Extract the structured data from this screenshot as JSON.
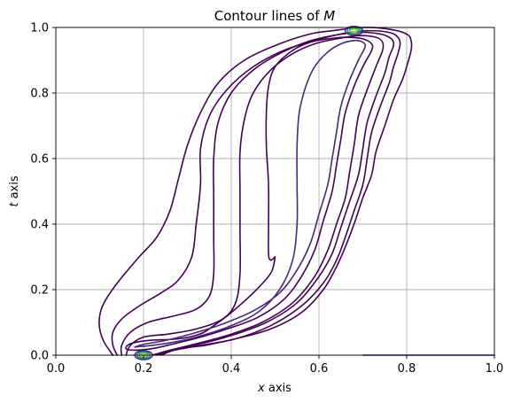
{
  "chart_data": {
    "type": "contour",
    "title": {
      "prefix": "Contour lines of ",
      "variable": "M"
    },
    "xlabel": {
      "variable": "x",
      "suffix": " axis"
    },
    "ylabel": {
      "variable": "t",
      "suffix": " axis"
    },
    "xlim": [
      0.0,
      1.0
    ],
    "ylim": [
      0.0,
      1.0
    ],
    "xticks": [
      0.0,
      0.2,
      0.4,
      0.6,
      0.8,
      1.0
    ],
    "yticks": [
      0.0,
      0.2,
      0.4,
      0.6,
      0.8,
      1.0
    ],
    "xtick_labels": [
      "0.0",
      "0.2",
      "0.4",
      "0.6",
      "0.8",
      "1.0"
    ],
    "ytick_labels": [
      "0.0",
      "0.2",
      "0.4",
      "0.6",
      "0.8",
      "1.0"
    ],
    "grid": true,
    "colors": {
      "contour_main": "#440154",
      "contour_inner": "#482878",
      "peak_core": "#b5de2b",
      "peak_mid": "#35b779",
      "peak_outer": "#26828e",
      "grid": "#b0b0b0"
    },
    "peaks": [
      {
        "x": 0.2,
        "y": 0.0
      },
      {
        "x": 0.68,
        "y": 0.99
      }
    ],
    "contours": [
      {
        "level_index": 0,
        "points": [
          [
            0.13,
            0.0
          ],
          [
            0.11,
            0.04
          ],
          [
            0.1,
            0.08
          ],
          [
            0.1,
            0.12
          ],
          [
            0.11,
            0.16
          ],
          [
            0.14,
            0.22
          ],
          [
            0.19,
            0.3
          ],
          [
            0.23,
            0.36
          ],
          [
            0.26,
            0.44
          ],
          [
            0.28,
            0.54
          ],
          [
            0.3,
            0.64
          ],
          [
            0.33,
            0.74
          ],
          [
            0.37,
            0.83
          ],
          [
            0.43,
            0.9
          ],
          [
            0.51,
            0.95
          ],
          [
            0.58,
            0.98
          ],
          [
            0.63,
            0.99
          ],
          [
            0.7,
            1.0
          ],
          [
            0.76,
            0.995
          ],
          [
            0.8,
            0.98
          ],
          [
            0.81,
            0.96
          ],
          [
            0.81,
            0.93
          ],
          [
            0.8,
            0.88
          ],
          [
            0.79,
            0.84
          ],
          [
            0.77,
            0.78
          ],
          [
            0.75,
            0.7
          ],
          [
            0.73,
            0.62
          ],
          [
            0.72,
            0.55
          ],
          [
            0.7,
            0.48
          ],
          [
            0.68,
            0.4
          ],
          [
            0.66,
            0.33
          ],
          [
            0.64,
            0.27
          ],
          [
            0.61,
            0.2
          ],
          [
            0.56,
            0.13
          ],
          [
            0.49,
            0.08
          ],
          [
            0.41,
            0.05
          ],
          [
            0.34,
            0.03
          ],
          [
            0.28,
            0.02
          ],
          [
            0.24,
            0.0
          ]
        ]
      },
      {
        "level_index": 1,
        "points": [
          [
            0.14,
            0.0
          ],
          [
            0.13,
            0.03
          ],
          [
            0.13,
            0.07
          ],
          [
            0.15,
            0.11
          ],
          [
            0.19,
            0.15
          ],
          [
            0.24,
            0.19
          ],
          [
            0.28,
            0.23
          ],
          [
            0.31,
            0.3
          ],
          [
            0.32,
            0.4
          ],
          [
            0.33,
            0.52
          ],
          [
            0.33,
            0.63
          ],
          [
            0.35,
            0.73
          ],
          [
            0.39,
            0.81
          ],
          [
            0.45,
            0.88
          ],
          [
            0.52,
            0.93
          ],
          [
            0.59,
            0.96
          ],
          [
            0.65,
            0.98
          ],
          [
            0.71,
            0.99
          ],
          [
            0.76,
            0.985
          ],
          [
            0.78,
            0.97
          ],
          [
            0.785,
            0.95
          ],
          [
            0.78,
            0.92
          ],
          [
            0.77,
            0.88
          ],
          [
            0.76,
            0.83
          ],
          [
            0.74,
            0.76
          ],
          [
            0.72,
            0.68
          ],
          [
            0.71,
            0.6
          ],
          [
            0.7,
            0.52
          ],
          [
            0.68,
            0.44
          ],
          [
            0.66,
            0.36
          ],
          [
            0.64,
            0.29
          ],
          [
            0.61,
            0.22
          ],
          [
            0.56,
            0.15
          ],
          [
            0.49,
            0.09
          ],
          [
            0.41,
            0.05
          ],
          [
            0.33,
            0.03
          ],
          [
            0.27,
            0.015
          ],
          [
            0.23,
            0.0
          ]
        ]
      },
      {
        "level_index": 2,
        "points": [
          [
            0.15,
            0.0
          ],
          [
            0.15,
            0.03
          ],
          [
            0.17,
            0.07
          ],
          [
            0.21,
            0.1
          ],
          [
            0.27,
            0.12
          ],
          [
            0.32,
            0.14
          ],
          [
            0.35,
            0.18
          ],
          [
            0.36,
            0.25
          ],
          [
            0.36,
            0.36
          ],
          [
            0.36,
            0.48
          ],
          [
            0.36,
            0.6
          ],
          [
            0.37,
            0.71
          ],
          [
            0.4,
            0.8
          ],
          [
            0.45,
            0.87
          ],
          [
            0.51,
            0.92
          ],
          [
            0.57,
            0.955
          ],
          [
            0.63,
            0.975
          ],
          [
            0.69,
            0.985
          ],
          [
            0.74,
            0.98
          ],
          [
            0.765,
            0.965
          ],
          [
            0.77,
            0.945
          ],
          [
            0.76,
            0.91
          ],
          [
            0.75,
            0.86
          ],
          [
            0.73,
            0.79
          ],
          [
            0.71,
            0.71
          ],
          [
            0.7,
            0.63
          ],
          [
            0.69,
            0.55
          ],
          [
            0.67,
            0.47
          ],
          [
            0.65,
            0.39
          ],
          [
            0.63,
            0.31
          ],
          [
            0.6,
            0.24
          ],
          [
            0.55,
            0.16
          ],
          [
            0.48,
            0.1
          ],
          [
            0.4,
            0.06
          ],
          [
            0.33,
            0.035
          ],
          [
            0.27,
            0.018
          ],
          [
            0.22,
            0.0
          ]
        ]
      },
      {
        "level_index": 3,
        "points": [
          [
            0.16,
            0.0
          ],
          [
            0.17,
            0.03
          ],
          [
            0.2,
            0.055
          ],
          [
            0.26,
            0.065
          ],
          [
            0.32,
            0.08
          ],
          [
            0.38,
            0.11
          ],
          [
            0.41,
            0.16
          ],
          [
            0.42,
            0.25
          ],
          [
            0.42,
            0.38
          ],
          [
            0.42,
            0.5
          ],
          [
            0.42,
            0.62
          ],
          [
            0.43,
            0.72
          ],
          [
            0.45,
            0.8
          ],
          [
            0.49,
            0.87
          ],
          [
            0.54,
            0.92
          ],
          [
            0.59,
            0.95
          ],
          [
            0.64,
            0.965
          ],
          [
            0.69,
            0.975
          ],
          [
            0.73,
            0.97
          ],
          [
            0.745,
            0.955
          ],
          [
            0.745,
            0.93
          ],
          [
            0.73,
            0.88
          ],
          [
            0.71,
            0.81
          ],
          [
            0.69,
            0.73
          ],
          [
            0.68,
            0.64
          ],
          [
            0.67,
            0.56
          ],
          [
            0.66,
            0.48
          ],
          [
            0.64,
            0.4
          ],
          [
            0.62,
            0.32
          ],
          [
            0.59,
            0.24
          ],
          [
            0.54,
            0.16
          ],
          [
            0.47,
            0.1
          ],
          [
            0.39,
            0.06
          ],
          [
            0.32,
            0.035
          ],
          [
            0.26,
            0.015
          ],
          [
            0.22,
            0.0
          ]
        ]
      },
      {
        "level_index": 4,
        "points": [
          [
            0.5,
            0.3
          ],
          [
            0.49,
            0.29
          ],
          [
            0.485,
            0.31
          ],
          [
            0.485,
            0.4
          ],
          [
            0.485,
            0.52
          ],
          [
            0.48,
            0.64
          ],
          [
            0.48,
            0.74
          ],
          [
            0.485,
            0.82
          ],
          [
            0.5,
            0.88
          ],
          [
            0.54,
            0.93
          ],
          [
            0.58,
            0.955
          ],
          [
            0.62,
            0.965
          ],
          [
            0.66,
            0.97
          ],
          [
            0.7,
            0.965
          ],
          [
            0.72,
            0.95
          ],
          [
            0.72,
            0.93
          ],
          [
            0.7,
            0.88
          ],
          [
            0.68,
            0.82
          ],
          [
            0.66,
            0.74
          ],
          [
            0.65,
            0.66
          ],
          [
            0.64,
            0.58
          ],
          [
            0.63,
            0.5
          ],
          [
            0.61,
            0.41
          ],
          [
            0.59,
            0.32
          ],
          [
            0.56,
            0.24
          ],
          [
            0.52,
            0.17
          ],
          [
            0.46,
            0.115
          ],
          [
            0.39,
            0.08
          ],
          [
            0.33,
            0.055
          ],
          [
            0.27,
            0.035
          ],
          [
            0.22,
            0.02
          ],
          [
            0.18,
            0.015
          ],
          [
            0.16,
            0.02
          ],
          [
            0.17,
            0.035
          ],
          [
            0.21,
            0.045
          ],
          [
            0.28,
            0.05
          ],
          [
            0.33,
            0.065
          ],
          [
            0.36,
            0.09
          ],
          [
            0.4,
            0.13
          ],
          [
            0.45,
            0.19
          ],
          [
            0.49,
            0.25
          ],
          [
            0.5,
            0.3
          ]
        ]
      },
      {
        "level_index": 5,
        "points": [
          [
            0.18,
            0.025
          ],
          [
            0.22,
            0.03
          ],
          [
            0.27,
            0.04
          ],
          [
            0.32,
            0.055
          ],
          [
            0.39,
            0.085
          ],
          [
            0.46,
            0.13
          ],
          [
            0.51,
            0.2
          ],
          [
            0.54,
            0.29
          ],
          [
            0.55,
            0.4
          ],
          [
            0.55,
            0.52
          ],
          [
            0.55,
            0.64
          ],
          [
            0.555,
            0.74
          ],
          [
            0.57,
            0.82
          ],
          [
            0.59,
            0.88
          ],
          [
            0.62,
            0.925
          ],
          [
            0.65,
            0.95
          ],
          [
            0.68,
            0.96
          ],
          [
            0.7,
            0.955
          ],
          [
            0.705,
            0.94
          ],
          [
            0.69,
            0.9
          ],
          [
            0.67,
            0.84
          ],
          [
            0.65,
            0.76
          ],
          [
            0.64,
            0.68
          ],
          [
            0.63,
            0.6
          ],
          [
            0.62,
            0.52
          ],
          [
            0.6,
            0.43
          ],
          [
            0.58,
            0.34
          ],
          [
            0.55,
            0.26
          ],
          [
            0.51,
            0.19
          ],
          [
            0.45,
            0.135
          ],
          [
            0.38,
            0.095
          ],
          [
            0.31,
            0.065
          ],
          [
            0.25,
            0.045
          ],
          [
            0.2,
            0.033
          ],
          [
            0.18,
            0.025
          ]
        ]
      },
      {
        "level_index": 6,
        "points": [
          [
            0.7,
            0.0
          ],
          [
            0.8,
            0.0
          ],
          [
            0.9,
            0.0
          ],
          [
            1.0,
            0.0
          ]
        ]
      }
    ]
  }
}
